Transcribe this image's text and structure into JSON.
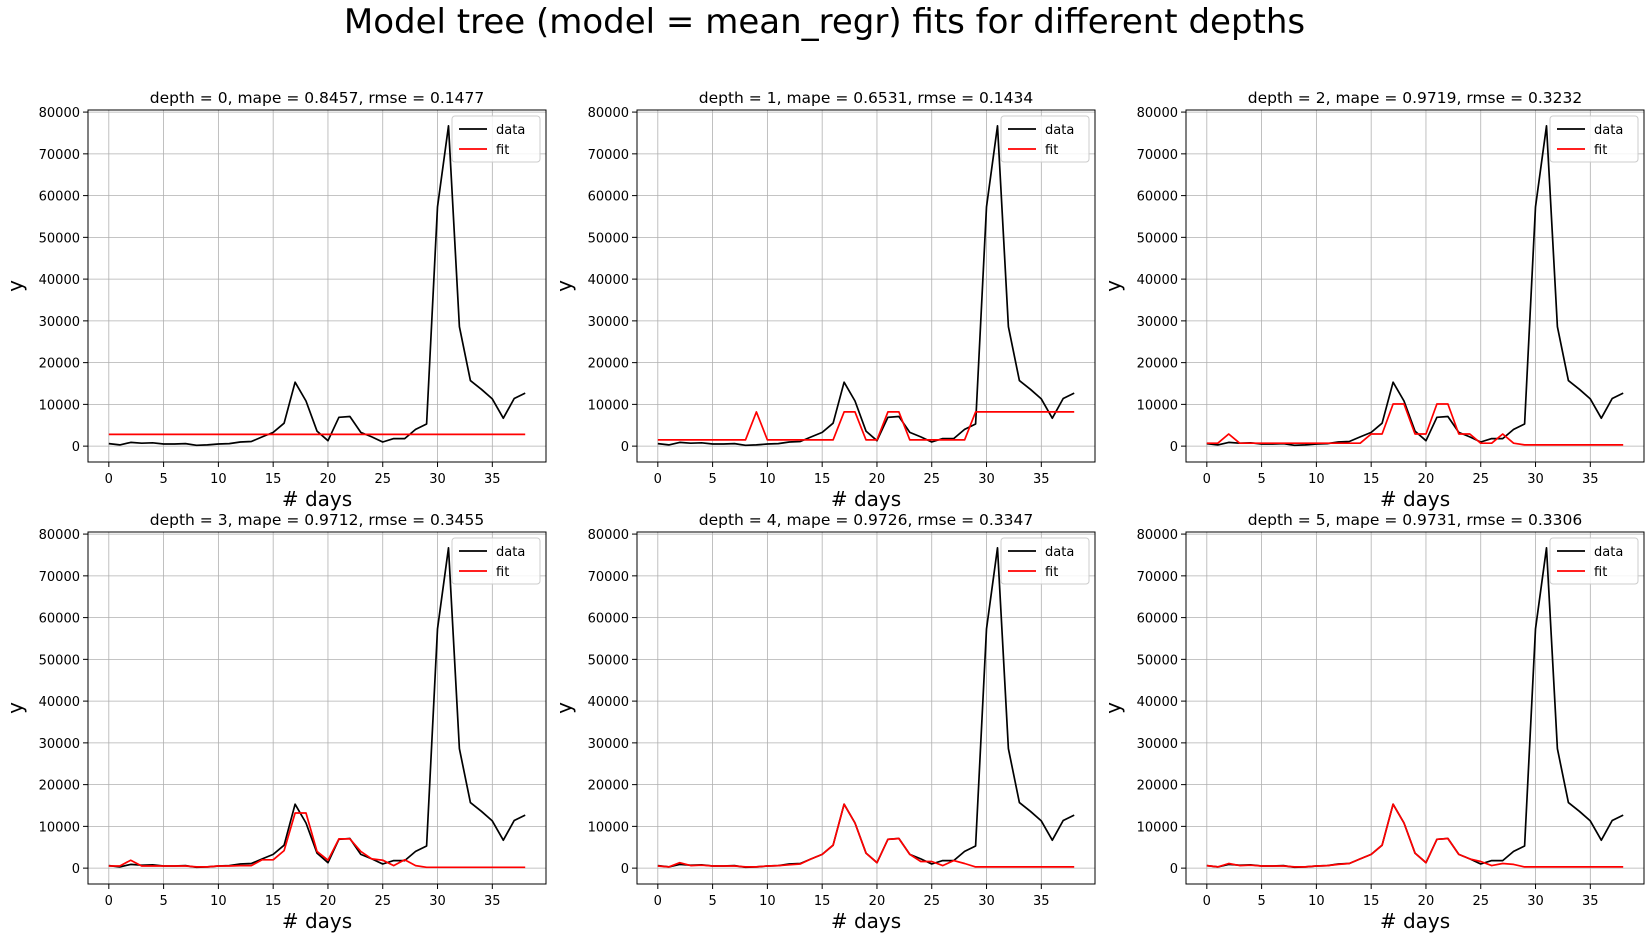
{
  "figure": {
    "title": "Model tree (model = mean_regr) fits for different depths"
  },
  "chart_data": [
    {
      "type": "line",
      "title": "depth = 0, mape = 0.8457, rmse = 0.1477",
      "xlabel": "# days",
      "ylabel": "y",
      "xlim": [
        -1.9,
        39.9
      ],
      "ylim": [
        -3800,
        80500
      ],
      "xticks": [
        0,
        5,
        10,
        15,
        20,
        25,
        30,
        35
      ],
      "yticks": [
        0,
        10000,
        20000,
        30000,
        40000,
        50000,
        60000,
        70000,
        80000
      ],
      "grid": true,
      "legend": "top-right",
      "x": [
        0,
        1,
        2,
        3,
        4,
        5,
        6,
        7,
        8,
        9,
        10,
        11,
        12,
        13,
        14,
        15,
        16,
        17,
        18,
        19,
        20,
        21,
        22,
        23,
        24,
        25,
        26,
        27,
        28,
        29,
        30,
        31,
        32,
        33,
        34,
        35,
        36,
        37,
        38
      ],
      "series": [
        {
          "name": "data",
          "color": "#000000",
          "values": [
            600,
            300,
            900,
            700,
            800,
            500,
            500,
            600,
            200,
            300,
            500,
            600,
            1000,
            1100,
            2200,
            3300,
            5500,
            15300,
            10800,
            3600,
            1300,
            6900,
            7100,
            3300,
            2200,
            1000,
            1800,
            1800,
            4000,
            5300,
            57300,
            76700,
            28600,
            15700,
            13600,
            11300,
            6700,
            11400,
            12700
          ]
        },
        {
          "name": "fit",
          "color": "#ff0000",
          "values": [
            2800,
            2800,
            2800,
            2800,
            2800,
            2800,
            2800,
            2800,
            2800,
            2800,
            2800,
            2800,
            2800,
            2800,
            2800,
            2800,
            2800,
            2800,
            2800,
            2800,
            2800,
            2800,
            2800,
            2800,
            2800,
            2800,
            2800,
            2800,
            2800,
            2800,
            2800,
            2800,
            2800,
            2800,
            2800,
            2800,
            2800,
            2800,
            2800
          ]
        }
      ]
    },
    {
      "type": "line",
      "title": "depth = 1, mape = 0.6531, rmse = 0.1434",
      "xlabel": "# days",
      "ylabel": "y",
      "xlim": [
        -1.9,
        39.9
      ],
      "ylim": [
        -3800,
        80500
      ],
      "xticks": [
        0,
        5,
        10,
        15,
        20,
        25,
        30,
        35
      ],
      "yticks": [
        0,
        10000,
        20000,
        30000,
        40000,
        50000,
        60000,
        70000,
        80000
      ],
      "grid": true,
      "legend": "top-right",
      "x": [
        0,
        1,
        2,
        3,
        4,
        5,
        6,
        7,
        8,
        9,
        10,
        11,
        12,
        13,
        14,
        15,
        16,
        17,
        18,
        19,
        20,
        21,
        22,
        23,
        24,
        25,
        26,
        27,
        28,
        29,
        30,
        31,
        32,
        33,
        34,
        35,
        36,
        37,
        38
      ],
      "series": [
        {
          "name": "data",
          "color": "#000000",
          "values": [
            600,
            300,
            900,
            700,
            800,
            500,
            500,
            600,
            200,
            300,
            500,
            600,
            1000,
            1100,
            2200,
            3300,
            5500,
            15300,
            10800,
            3600,
            1300,
            6900,
            7100,
            3300,
            2200,
            1000,
            1800,
            1800,
            4000,
            5300,
            57300,
            76700,
            28600,
            15700,
            13600,
            11300,
            6700,
            11400,
            12700
          ]
        },
        {
          "name": "fit",
          "color": "#ff0000",
          "values": [
            1500,
            1500,
            1500,
            1500,
            1500,
            1500,
            1500,
            1500,
            1500,
            8200,
            1500,
            1500,
            1500,
            1500,
            1500,
            1500,
            1500,
            8200,
            8200,
            1500,
            1500,
            8200,
            8200,
            1500,
            1500,
            1500,
            1500,
            1500,
            1500,
            8200,
            8200,
            8200,
            8200,
            8200,
            8200,
            8200,
            8200,
            8200,
            8200
          ]
        }
      ]
    },
    {
      "type": "line",
      "title": "depth = 2, mape = 0.9719, rmse = 0.3232",
      "xlabel": "# days",
      "ylabel": "y",
      "xlim": [
        -1.9,
        39.9
      ],
      "ylim": [
        -3800,
        80500
      ],
      "xticks": [
        0,
        5,
        10,
        15,
        20,
        25,
        30,
        35
      ],
      "yticks": [
        0,
        10000,
        20000,
        30000,
        40000,
        50000,
        60000,
        70000,
        80000
      ],
      "grid": true,
      "legend": "top-right",
      "x": [
        0,
        1,
        2,
        3,
        4,
        5,
        6,
        7,
        8,
        9,
        10,
        11,
        12,
        13,
        14,
        15,
        16,
        17,
        18,
        19,
        20,
        21,
        22,
        23,
        24,
        25,
        26,
        27,
        28,
        29,
        30,
        31,
        32,
        33,
        34,
        35,
        36,
        37,
        38
      ],
      "series": [
        {
          "name": "data",
          "color": "#000000",
          "values": [
            600,
            300,
            900,
            700,
            800,
            500,
            500,
            600,
            200,
            300,
            500,
            600,
            1000,
            1100,
            2200,
            3300,
            5500,
            15300,
            10800,
            3600,
            1300,
            6900,
            7100,
            3300,
            2200,
            1000,
            1800,
            1800,
            4000,
            5300,
            57300,
            76700,
            28600,
            15700,
            13600,
            11300,
            6700,
            11400,
            12700
          ]
        },
        {
          "name": "fit",
          "color": "#ff0000",
          "values": [
            700,
            700,
            2900,
            700,
            700,
            700,
            700,
            700,
            700,
            700,
            700,
            700,
            700,
            700,
            700,
            2900,
            2900,
            10100,
            10100,
            2900,
            2900,
            10100,
            10100,
            2900,
            2900,
            700,
            700,
            2900,
            700,
            300,
            300,
            300,
            300,
            300,
            300,
            300,
            300,
            300,
            300
          ]
        }
      ]
    },
    {
      "type": "line",
      "title": "depth = 3, mape = 0.9712, rmse = 0.3455",
      "xlabel": "# days",
      "ylabel": "y",
      "xlim": [
        -1.9,
        39.9
      ],
      "ylim": [
        -3800,
        80500
      ],
      "xticks": [
        0,
        5,
        10,
        15,
        20,
        25,
        30,
        35
      ],
      "yticks": [
        0,
        10000,
        20000,
        30000,
        40000,
        50000,
        60000,
        70000,
        80000
      ],
      "grid": true,
      "legend": "top-right",
      "x": [
        0,
        1,
        2,
        3,
        4,
        5,
        6,
        7,
        8,
        9,
        10,
        11,
        12,
        13,
        14,
        15,
        16,
        17,
        18,
        19,
        20,
        21,
        22,
        23,
        24,
        25,
        26,
        27,
        28,
        29,
        30,
        31,
        32,
        33,
        34,
        35,
        36,
        37,
        38
      ],
      "series": [
        {
          "name": "data",
          "color": "#000000",
          "values": [
            600,
            300,
            900,
            700,
            800,
            500,
            500,
            600,
            200,
            300,
            500,
            600,
            1000,
            1100,
            2200,
            3300,
            5500,
            15300,
            10800,
            3600,
            1300,
            6900,
            7100,
            3300,
            2200,
            1000,
            1800,
            1800,
            4000,
            5300,
            57300,
            76700,
            28600,
            15700,
            13600,
            11300,
            6700,
            11400,
            12700
          ]
        },
        {
          "name": "fit",
          "color": "#ff0000",
          "values": [
            500,
            500,
            1900,
            500,
            500,
            500,
            500,
            500,
            300,
            300,
            500,
            500,
            600,
            600,
            2000,
            2000,
            4200,
            13200,
            13200,
            4000,
            1900,
            7000,
            7000,
            4000,
            2200,
            1900,
            600,
            2000,
            600,
            200,
            200,
            200,
            200,
            200,
            200,
            200,
            200,
            200,
            200
          ]
        }
      ]
    },
    {
      "type": "line",
      "title": "depth = 4, mape = 0.9726, rmse = 0.3347",
      "xlabel": "# days",
      "ylabel": "y",
      "xlim": [
        -1.9,
        39.9
      ],
      "ylim": [
        -3800,
        80500
      ],
      "xticks": [
        0,
        5,
        10,
        15,
        20,
        25,
        30,
        35
      ],
      "yticks": [
        0,
        10000,
        20000,
        30000,
        40000,
        50000,
        60000,
        70000,
        80000
      ],
      "grid": true,
      "legend": "top-right",
      "x": [
        0,
        1,
        2,
        3,
        4,
        5,
        6,
        7,
        8,
        9,
        10,
        11,
        12,
        13,
        14,
        15,
        16,
        17,
        18,
        19,
        20,
        21,
        22,
        23,
        24,
        25,
        26,
        27,
        28,
        29,
        30,
        31,
        32,
        33,
        34,
        35,
        36,
        37,
        38
      ],
      "series": [
        {
          "name": "data",
          "color": "#000000",
          "values": [
            600,
            300,
            900,
            700,
            800,
            500,
            500,
            600,
            200,
            300,
            500,
            600,
            1000,
            1100,
            2200,
            3300,
            5500,
            15300,
            10800,
            3600,
            1300,
            6900,
            7100,
            3300,
            2200,
            1000,
            1800,
            1800,
            4000,
            5300,
            57300,
            76700,
            28600,
            15700,
            13600,
            11300,
            6700,
            11400,
            12700
          ]
        },
        {
          "name": "fit",
          "color": "#ff0000",
          "values": [
            500,
            300,
            1300,
            600,
            700,
            500,
            500,
            500,
            300,
            300,
            500,
            600,
            800,
            1000,
            2200,
            3300,
            5500,
            15300,
            10800,
            3600,
            1300,
            6900,
            7100,
            3300,
            1600,
            1600,
            600,
            1800,
            1100,
            300,
            300,
            300,
            300,
            300,
            300,
            300,
            300,
            300,
            300
          ]
        }
      ]
    },
    {
      "type": "line",
      "title": "depth = 5, mape = 0.9731, rmse = 0.3306",
      "xlabel": "# days",
      "ylabel": "y",
      "xlim": [
        -1.9,
        39.9
      ],
      "ylim": [
        -3800,
        80500
      ],
      "xticks": [
        0,
        5,
        10,
        15,
        20,
        25,
        30,
        35
      ],
      "yticks": [
        0,
        10000,
        20000,
        30000,
        40000,
        50000,
        60000,
        70000,
        80000
      ],
      "grid": true,
      "legend": "top-right",
      "x": [
        0,
        1,
        2,
        3,
        4,
        5,
        6,
        7,
        8,
        9,
        10,
        11,
        12,
        13,
        14,
        15,
        16,
        17,
        18,
        19,
        20,
        21,
        22,
        23,
        24,
        25,
        26,
        27,
        28,
        29,
        30,
        31,
        32,
        33,
        34,
        35,
        36,
        37,
        38
      ],
      "series": [
        {
          "name": "data",
          "color": "#000000",
          "values": [
            600,
            300,
            900,
            700,
            800,
            500,
            500,
            600,
            200,
            300,
            500,
            600,
            1000,
            1100,
            2200,
            3300,
            5500,
            15300,
            10800,
            3600,
            1300,
            6900,
            7100,
            3300,
            2200,
            1000,
            1800,
            1800,
            4000,
            5300,
            57300,
            76700,
            28600,
            15700,
            13600,
            11300,
            6700,
            11400,
            12700
          ]
        },
        {
          "name": "fit",
          "color": "#ff0000",
          "values": [
            600,
            300,
            1100,
            600,
            700,
            500,
            500,
            500,
            300,
            300,
            500,
            600,
            900,
            1100,
            2200,
            3300,
            5500,
            15300,
            10800,
            3600,
            1300,
            6900,
            7100,
            3300,
            2200,
            1600,
            600,
            1100,
            900,
            300,
            300,
            300,
            300,
            300,
            300,
            300,
            300,
            300,
            300
          ]
        }
      ]
    }
  ]
}
